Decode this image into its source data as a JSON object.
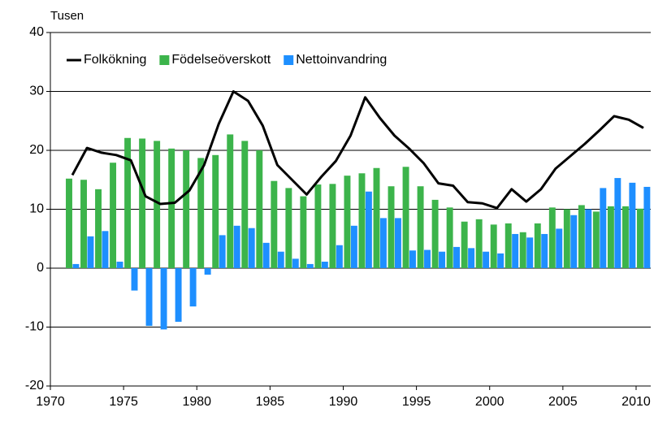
{
  "chart_data": {
    "type": "bar-line",
    "y_label": "Tusen",
    "x": [
      1971,
      1972,
      1973,
      1974,
      1975,
      1976,
      1977,
      1978,
      1979,
      1980,
      1981,
      1982,
      1983,
      1984,
      1985,
      1986,
      1987,
      1988,
      1989,
      1990,
      1991,
      1992,
      1993,
      1994,
      1995,
      1996,
      1997,
      1998,
      1999,
      2000,
      2001,
      2002,
      2003,
      2004,
      2005,
      2006,
      2007,
      2008,
      2009,
      2010
    ],
    "series": [
      {
        "name": "Folkökning",
        "kind": "line",
        "color": "#000000",
        "values": [
          15.8,
          20.4,
          19.6,
          19.2,
          18.3,
          12.2,
          10.9,
          11.1,
          13.2,
          17.5,
          24.5,
          30.0,
          28.4,
          24.2,
          17.5,
          15.0,
          12.5,
          15.5,
          18.2,
          22.5,
          29.0,
          25.5,
          22.5,
          20.3,
          17.8,
          14.4,
          14.0,
          11.2,
          11.0,
          10.2,
          13.4,
          11.3,
          13.4,
          16.9,
          19.0,
          21.1,
          23.4,
          25.8,
          25.2,
          23.8
        ]
      },
      {
        "name": "Födelseöverskott",
        "kind": "bar",
        "color": "#3cb44b",
        "values": [
          15.2,
          15.0,
          13.4,
          17.9,
          22.1,
          22.0,
          21.6,
          20.3,
          20.0,
          18.7,
          19.2,
          22.7,
          21.6,
          20.0,
          14.8,
          13.6,
          12.2,
          14.2,
          14.3,
          15.7,
          16.1,
          17.0,
          13.9,
          17.2,
          13.9,
          11.6,
          10.3,
          7.9,
          8.3,
          7.4,
          7.6,
          6.1,
          7.6,
          10.3,
          10.0,
          10.7,
          9.6,
          10.5,
          10.5,
          10.1
        ]
      },
      {
        "name": "Nettoinvandring",
        "kind": "bar",
        "color": "#1e8fff",
        "values": [
          0.7,
          5.4,
          6.3,
          1.1,
          -3.8,
          -9.8,
          -10.4,
          -9.1,
          -6.5,
          -1.1,
          5.6,
          7.2,
          6.8,
          4.3,
          2.8,
          1.6,
          0.7,
          1.1,
          3.9,
          7.2,
          13.0,
          8.5,
          8.5,
          3.0,
          3.1,
          2.8,
          3.6,
          3.4,
          2.8,
          2.5,
          5.8,
          5.2,
          5.8,
          6.7,
          9.0,
          10.0,
          13.6,
          15.3,
          14.5,
          13.8
        ]
      }
    ],
    "xlim": [
      1970,
      2011
    ],
    "xticks": [
      1970,
      1975,
      1980,
      1985,
      1990,
      1995,
      2000,
      2005,
      2010
    ],
    "ylim": [
      -20,
      40
    ],
    "yticks": [
      -20,
      -10,
      0,
      10,
      20,
      30,
      40
    ],
    "grid": true,
    "legend": "top-left"
  }
}
